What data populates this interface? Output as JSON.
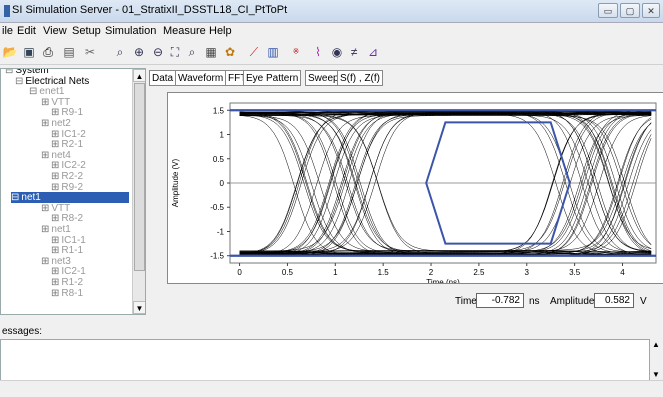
{
  "window": {
    "title": "SI Simulation Server - 01_StratixII_DSSTL18_CI_PtToPt",
    "minimize": "▭",
    "maximize": "▢",
    "close": "✕"
  },
  "menu": [
    "ile",
    "Edit",
    "View",
    "Setup",
    "Simulation",
    "Measure",
    "Help"
  ],
  "toolbar_icons": [
    "open-folder-icon",
    "save-icon",
    "print-icon",
    "preview-icon",
    "cut-icon",
    "zoom-fit-icon",
    "zoom-in-icon",
    "zoom-out-icon",
    "zoom-box-icon",
    "zoom-area-icon",
    "table-icon",
    "settings-icon",
    "probe-icon",
    "waveform-icon",
    "spice-icon",
    "eye-icon",
    "visibility-icon",
    "no-crosstalk-icon",
    "chart-icon"
  ],
  "tree": {
    "items": [
      {
        "label": "System",
        "level": 0
      },
      {
        "label": "Electrical Nets",
        "level": 1
      },
      {
        "label": "enet1",
        "level": 2
      },
      {
        "label": "VTT",
        "level": 3
      },
      {
        "label": "R9-1",
        "level": 4
      },
      {
        "label": "net2",
        "level": 3
      },
      {
        "label": "IC1-2",
        "level": 4
      },
      {
        "label": "R2-1",
        "level": 4
      },
      {
        "label": "net4",
        "level": 3
      },
      {
        "label": "IC2-2",
        "level": 4
      },
      {
        "label": "R2-2",
        "level": 4
      },
      {
        "label": "R9-2",
        "level": 4
      },
      {
        "label": "net1",
        "level": 2,
        "selected": true
      },
      {
        "label": "VTT",
        "level": 3
      },
      {
        "label": "R8-2",
        "level": 4
      },
      {
        "label": "net1",
        "level": 3
      },
      {
        "label": "IC1-1",
        "level": 4
      },
      {
        "label": "R1-1",
        "level": 4
      },
      {
        "label": "net3",
        "level": 3
      },
      {
        "label": "IC2-1",
        "level": 4
      },
      {
        "label": "R1-2",
        "level": 4
      },
      {
        "label": "R8-1",
        "level": 4
      }
    ]
  },
  "tabs": [
    "Data",
    "Waveform",
    "FFT",
    "Eye Pattern",
    "Sweep",
    "S(f) , Z(f)"
  ],
  "readouts": {
    "time_label": "Time",
    "time_value": "-0.782",
    "time_unit": "ns",
    "amp_label": "Amplitude",
    "amp_value": "0.582",
    "amp_unit": "V"
  },
  "messages": {
    "label": "essages:"
  },
  "chart_data": {
    "type": "line",
    "title": "",
    "xlabel": "Time (ns)",
    "ylabel": "Amplitude (V)",
    "xlim": [
      -0.1,
      4.35
    ],
    "ylim": [
      -1.65,
      1.65
    ],
    "x_ticks": [
      0,
      0.5,
      1,
      1.5,
      2,
      2.5,
      3,
      3.5,
      4
    ],
    "y_ticks": [
      1.5,
      1,
      0.5,
      0,
      -0.5,
      -1,
      -1.5
    ],
    "series": [
      {
        "style": "eye-pattern traces",
        "high_level": 1.45,
        "low_level": -1.45,
        "transition_centers": [
          1.0,
          3.7
        ],
        "transition_width": 0.9
      }
    ],
    "mask": {
      "vertices": [
        [
          1.95,
          0
        ],
        [
          2.15,
          1.25
        ],
        [
          3.25,
          1.25
        ],
        [
          3.45,
          0
        ],
        [
          3.25,
          -1.25
        ],
        [
          2.15,
          -1.25
        ]
      ]
    },
    "limit_lines": [
      1.5,
      -1.5
    ],
    "colors": {
      "traces": "#000000",
      "mask": "#3b55a8",
      "limit": "#3b55a8",
      "zero_line": "#9a9a9a"
    }
  }
}
